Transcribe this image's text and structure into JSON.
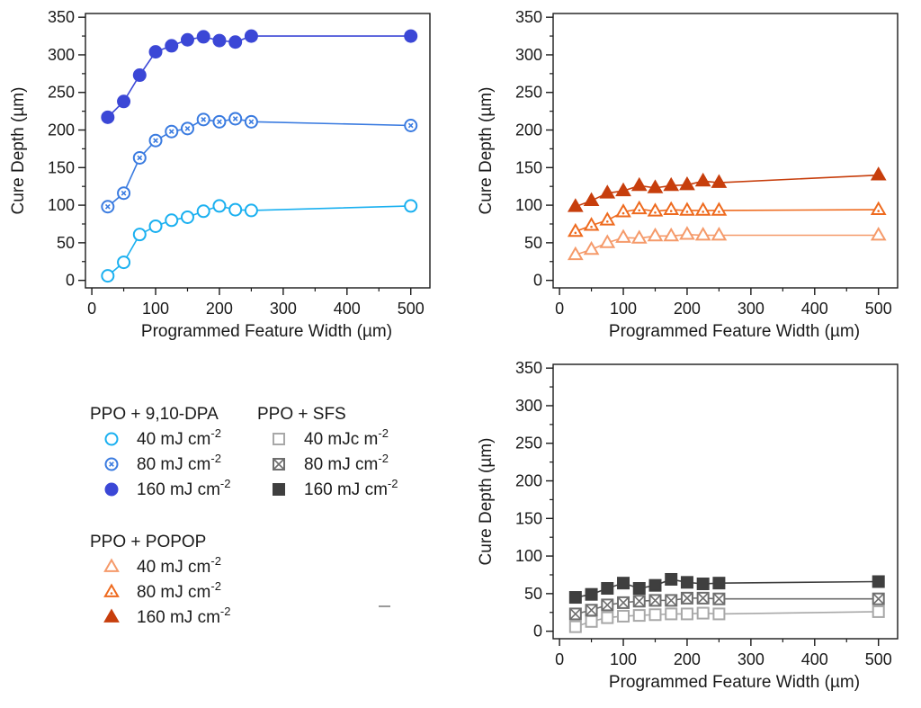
{
  "chart_data": [
    {
      "type": "line",
      "xlabel": "Programmed Feature Width (µm)",
      "ylabel": "Cure Depth (µm)",
      "xlim": [
        -10,
        530
      ],
      "ylim": [
        -10,
        355
      ],
      "xticks": [
        0,
        100,
        200,
        300,
        400,
        500
      ],
      "yticks": [
        0,
        50,
        100,
        150,
        200,
        250,
        300,
        350
      ],
      "x": [
        25,
        50,
        75,
        100,
        125,
        150,
        175,
        200,
        225,
        250,
        500
      ],
      "series": [
        {
          "name": "PPO + 9,10-DPA 40 mJ cm-2",
          "marker": "circle-open",
          "color": "#1ab0f0",
          "values": [
            6,
            24,
            61,
            72,
            80,
            84,
            92,
            99,
            94,
            93,
            99
          ]
        },
        {
          "name": "PPO + 9,10-DPA 80 mJ cm-2",
          "marker": "circle-x",
          "color": "#3a7be0",
          "values": [
            98,
            116,
            163,
            186,
            198,
            202,
            214,
            211,
            215,
            211,
            206
          ]
        },
        {
          "name": "PPO + 9,10-DPA 160 mJ cm-2",
          "marker": "circle-filled",
          "color": "#3b47d6",
          "values": [
            217,
            238,
            273,
            304,
            312,
            320,
            324,
            319,
            317,
            325,
            325
          ]
        }
      ]
    },
    {
      "type": "line",
      "xlabel": "Programmed Feature Width (µm)",
      "ylabel": "Cure Depth (µm)",
      "xlim": [
        -10,
        530
      ],
      "ylim": [
        -10,
        355
      ],
      "xticks": [
        0,
        100,
        200,
        300,
        400,
        500
      ],
      "yticks": [
        0,
        50,
        100,
        150,
        200,
        250,
        300,
        350
      ],
      "x": [
        25,
        50,
        75,
        100,
        125,
        150,
        175,
        200,
        225,
        250,
        500
      ],
      "series": [
        {
          "name": "PPO + POPOP 40 mJ cm-2",
          "marker": "triangle-open",
          "color": "#f59a6a",
          "values": [
            34,
            41,
            50,
            57,
            56,
            59,
            59,
            61,
            60,
            60,
            60
          ]
        },
        {
          "name": "PPO + POPOP 80 mJ cm-2",
          "marker": "triangle-dot",
          "color": "#ee6a1e",
          "values": [
            65,
            73,
            80,
            91,
            95,
            92,
            94,
            93,
            93,
            93,
            94
          ]
        },
        {
          "name": "PPO + POPOP 160 mJ cm-2",
          "marker": "triangle-filled",
          "color": "#c73e0c",
          "values": [
            98,
            106,
            116,
            119,
            126,
            123,
            126,
            127,
            132,
            130,
            140
          ]
        }
      ]
    },
    {
      "type": "line",
      "xlabel": "Programmed Feature Width (µm)",
      "ylabel": "Cure Depth (µm)",
      "xlim": [
        -10,
        530
      ],
      "ylim": [
        -10,
        355
      ],
      "xticks": [
        0,
        100,
        200,
        300,
        400,
        500
      ],
      "yticks": [
        0,
        50,
        100,
        150,
        200,
        250,
        300,
        350
      ],
      "x": [
        25,
        50,
        75,
        100,
        125,
        150,
        175,
        200,
        225,
        250,
        500
      ],
      "series": [
        {
          "name": "PPO + SFS 40 mJc m-2",
          "marker": "square-open",
          "color": "#a8a8a8",
          "values": [
            6,
            13,
            18,
            20,
            21,
            22,
            23,
            23,
            24,
            23,
            26
          ]
        },
        {
          "name": "PPO + SFS 80 mJ cm-2",
          "marker": "square-x",
          "color": "#6e6e6e",
          "values": [
            23,
            28,
            35,
            38,
            40,
            41,
            41,
            44,
            44,
            43,
            43
          ]
        },
        {
          "name": "PPO + SFS 160 mJ cm-2",
          "marker": "square-filled",
          "color": "#3f3f3f",
          "values": [
            45,
            49,
            57,
            64,
            57,
            61,
            69,
            65,
            63,
            64,
            66
          ]
        }
      ]
    }
  ],
  "legend": {
    "groups": [
      {
        "title": "PPO + 9,10-DPA",
        "items": [
          {
            "base": "40 mJ cm",
            "sup": "-2",
            "marker": "circle-open",
            "color": "#1ab0f0"
          },
          {
            "base": "80 mJ cm",
            "sup": "-2",
            "marker": "circle-x",
            "color": "#3a7be0"
          },
          {
            "base": "160 mJ cm",
            "sup": "-2",
            "marker": "circle-filled",
            "color": "#3b47d6"
          }
        ]
      },
      {
        "title": "PPO + SFS",
        "items": [
          {
            "base": "40 mJc m",
            "sup": "-2",
            "marker": "square-open",
            "color": "#a8a8a8"
          },
          {
            "base": "80 mJ cm",
            "sup": "-2",
            "marker": "square-x",
            "color": "#6e6e6e"
          },
          {
            "base": "160 mJ cm",
            "sup": "-2",
            "marker": "square-filled",
            "color": "#3f3f3f"
          }
        ]
      },
      {
        "title": "PPO + POPOP",
        "items": [
          {
            "base": "40 mJ cm",
            "sup": "-2",
            "marker": "triangle-open",
            "color": "#f59a6a"
          },
          {
            "base": "80 mJ cm",
            "sup": "-2",
            "marker": "triangle-dot",
            "color": "#ee6a1e"
          },
          {
            "base": "160 mJ cm",
            "sup": "-2",
            "marker": "triangle-filled",
            "color": "#c73e0c"
          }
        ]
      }
    ]
  }
}
